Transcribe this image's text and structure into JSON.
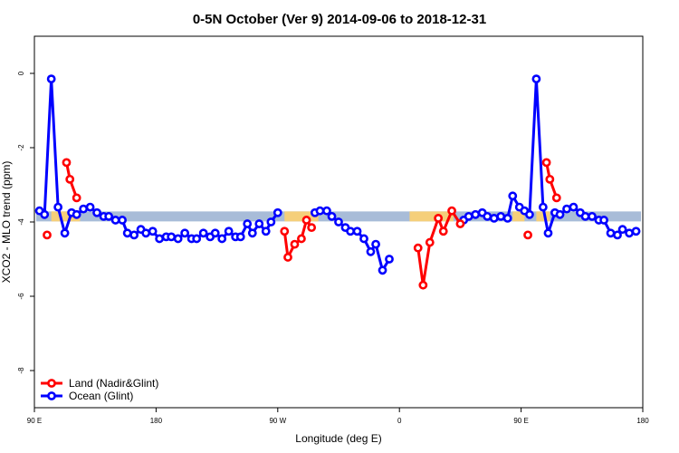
{
  "chart_data": {
    "type": "line",
    "title": "0-5N October (Ver 9)   2014-09-06 to 2018-12-31",
    "xlabel": "Longitude (deg E)",
    "ylabel": "XCO2 - MLO trend (ppm)",
    "xlim": [
      90,
      450
    ],
    "ylim": [
      -9,
      1
    ],
    "xticks": [
      {
        "value": 90,
        "label": "90 E"
      },
      {
        "value": 162,
        "label": "180"
      },
      {
        "value": 234,
        "label": "90 W"
      },
      {
        "value": 306,
        "label": "0"
      },
      {
        "value": 378,
        "label": "90 E"
      },
      {
        "value": 450,
        "label": "180"
      }
    ],
    "yticks": [
      {
        "value": 0,
        "label": "0"
      },
      {
        "value": -2,
        "label": "-2"
      },
      {
        "value": -4,
        "label": "-4"
      },
      {
        "value": -6,
        "label": "-6"
      },
      {
        "value": -8,
        "label": "-8"
      }
    ],
    "grid": false,
    "legend": "bottom-left",
    "band": {
      "y": -3.85,
      "color_default": "#a8bcd8",
      "color_land": "#f5cf7a",
      "land_ranges": [
        [
          100,
          117
        ],
        [
          238,
          258
        ],
        [
          312,
          338
        ],
        [
          373,
          380
        ],
        [
          387,
          395
        ]
      ]
    },
    "series": [
      {
        "name": "Land (Nadir&Glint)",
        "color": "#ff0000",
        "segments": [
          [
            [
              97.5,
              -4.35
            ]
          ],
          [
            [
              109,
              -2.4
            ],
            [
              111,
              -2.85
            ],
            [
              115,
              -3.35
            ]
          ],
          [
            [
              238,
              -4.25
            ],
            [
              240,
              -4.95
            ],
            [
              244,
              -4.6
            ],
            [
              248,
              -4.45
            ],
            [
              251,
              -3.95
            ],
            [
              254,
              -4.15
            ]
          ],
          [
            [
              317,
              -4.7
            ],
            [
              320,
              -5.7
            ],
            [
              324,
              -4.55
            ],
            [
              329,
              -3.9
            ],
            [
              332,
              -4.25
            ],
            [
              337,
              -3.7
            ],
            [
              342,
              -4.05
            ]
          ],
          [
            [
              382,
              -4.35
            ]
          ],
          [
            [
              393,
              -2.4
            ],
            [
              395,
              -2.85
            ],
            [
              399,
              -3.35
            ]
          ]
        ]
      },
      {
        "name": "Ocean (Glint)",
        "color": "#0000ff",
        "segments": [
          [
            [
              93,
              -3.7
            ],
            [
              96,
              -3.8
            ],
            [
              100,
              -0.15
            ],
            [
              104,
              -3.6
            ],
            [
              108,
              -4.3
            ],
            [
              112,
              -3.75
            ],
            [
              115,
              -3.8
            ],
            [
              119,
              -3.65
            ],
            [
              123,
              -3.6
            ],
            [
              127,
              -3.75
            ],
            [
              131,
              -3.85
            ],
            [
              134,
              -3.85
            ],
            [
              138,
              -3.95
            ],
            [
              142,
              -3.95
            ],
            [
              145,
              -4.3
            ],
            [
              149,
              -4.35
            ],
            [
              153,
              -4.2
            ],
            [
              156,
              -4.3
            ],
            [
              160,
              -4.25
            ],
            [
              164,
              -4.45
            ],
            [
              168,
              -4.4
            ],
            [
              171,
              -4.4
            ],
            [
              175,
              -4.45
            ],
            [
              179,
              -4.3
            ],
            [
              183,
              -4.45
            ],
            [
              186,
              -4.45
            ],
            [
              190,
              -4.3
            ],
            [
              194,
              -4.4
            ],
            [
              197,
              -4.3
            ],
            [
              201,
              -4.45
            ],
            [
              205,
              -4.25
            ],
            [
              209,
              -4.4
            ],
            [
              212,
              -4.4
            ],
            [
              216,
              -4.05
            ],
            [
              219,
              -4.3
            ],
            [
              223,
              -4.05
            ],
            [
              227,
              -4.25
            ],
            [
              230,
              -4.0
            ],
            [
              234,
              -3.75
            ]
          ],
          [
            [
              256,
              -3.75
            ],
            [
              259,
              -3.7
            ],
            [
              263,
              -3.7
            ],
            [
              266,
              -3.85
            ],
            [
              270,
              -4.0
            ],
            [
              274,
              -4.15
            ],
            [
              277,
              -4.25
            ],
            [
              281,
              -4.25
            ],
            [
              285,
              -4.45
            ],
            [
              289,
              -4.8
            ],
            [
              292,
              -4.6
            ],
            [
              296,
              -5.3
            ],
            [
              300,
              -5.0
            ]
          ],
          [
            [
              344,
              -3.95
            ],
            [
              347,
              -3.85
            ],
            [
              351,
              -3.8
            ],
            [
              355,
              -3.75
            ],
            [
              358,
              -3.85
            ],
            [
              362,
              -3.9
            ],
            [
              366,
              -3.85
            ],
            [
              370,
              -3.9
            ],
            [
              373,
              -3.3
            ],
            [
              377,
              -3.6
            ],
            [
              380,
              -3.7
            ],
            [
              383,
              -3.8
            ],
            [
              387,
              -0.15
            ],
            [
              391,
              -3.6
            ],
            [
              394,
              -4.3
            ],
            [
              398,
              -3.75
            ],
            [
              401,
              -3.8
            ],
            [
              405,
              -3.65
            ],
            [
              409,
              -3.6
            ],
            [
              413,
              -3.75
            ],
            [
              416,
              -3.85
            ],
            [
              420,
              -3.85
            ],
            [
              424,
              -3.95
            ],
            [
              427,
              -3.95
            ],
            [
              431,
              -4.3
            ],
            [
              435,
              -4.35
            ],
            [
              438,
              -4.2
            ],
            [
              442,
              -4.3
            ],
            [
              446,
              -4.25
            ]
          ]
        ]
      }
    ]
  }
}
